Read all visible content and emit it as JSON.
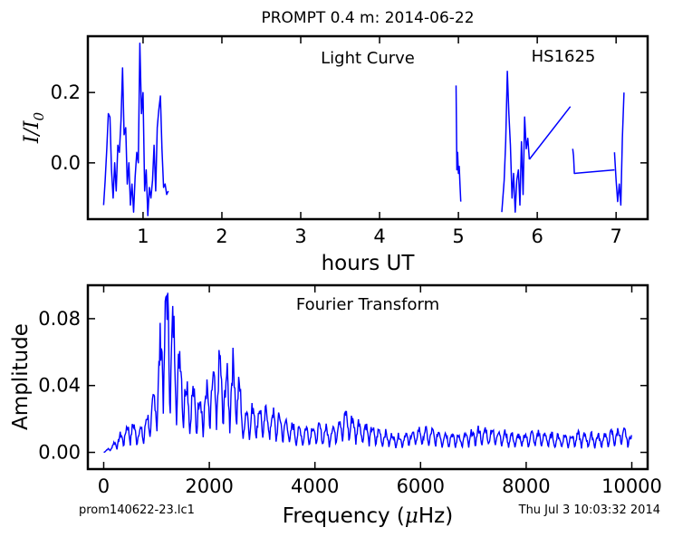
{
  "figure": {
    "title": "PROMPT 0.4 m:  2014-06-22",
    "footer_left": "prom140622-23.lc1",
    "footer_right": "Thu Jul  3 10:03:32 2014",
    "line_color": "#0000ff"
  },
  "chart_data": [
    {
      "type": "line",
      "title": "Light Curve",
      "annotation": "HS1625",
      "xlabel": "hours UT",
      "ylabel": "I/I₀",
      "ylabel_main": "I/I",
      "ylabel_sub": "0",
      "xlim": [
        0.3,
        7.4
      ],
      "ylim": [
        -0.16,
        0.36
      ],
      "xticks": [
        1,
        2,
        3,
        4,
        5,
        6,
        7
      ],
      "xtick_labels": [
        "1",
        "2",
        "3",
        "4",
        "5",
        "6",
        "7"
      ],
      "yticks": [
        0.0,
        0.2
      ],
      "ytick_labels": [
        "0.0",
        "0.2"
      ],
      "segments": [
        {
          "x": [
            0.5,
            0.52,
            0.54,
            0.56,
            0.58,
            0.6,
            0.62,
            0.64,
            0.66,
            0.68,
            0.7,
            0.72,
            0.74,
            0.76,
            0.78,
            0.8,
            0.82,
            0.84,
            0.86,
            0.88,
            0.9,
            0.92,
            0.94,
            0.96,
            0.98,
            1.0,
            1.02,
            1.04,
            1.06,
            1.08,
            1.1,
            1.12,
            1.14,
            1.16,
            1.18,
            1.2,
            1.22,
            1.24,
            1.26,
            1.28,
            1.3,
            1.32
          ],
          "y": [
            -0.12,
            -0.05,
            0.04,
            0.14,
            0.13,
            -0.02,
            -0.1,
            0.0,
            -0.08,
            0.05,
            0.03,
            0.12,
            0.27,
            0.08,
            0.1,
            -0.06,
            0.0,
            -0.12,
            -0.06,
            -0.14,
            -0.04,
            0.03,
            0.0,
            0.34,
            0.14,
            0.2,
            -0.08,
            -0.02,
            -0.15,
            -0.07,
            -0.1,
            -0.05,
            0.05,
            -0.08,
            0.1,
            0.15,
            0.19,
            0.04,
            -0.07,
            -0.06,
            -0.09,
            -0.08
          ]
        },
        {
          "x": [
            4.97,
            4.98,
            4.99,
            5.0,
            5.01,
            5.02,
            5.03
          ],
          "y": [
            0.22,
            -0.02,
            0.03,
            -0.03,
            -0.01,
            -0.06,
            -0.11
          ]
        },
        {
          "x": [
            5.55,
            5.58,
            5.6,
            5.62,
            5.64,
            5.66,
            5.68,
            5.7,
            5.72,
            5.74,
            5.76,
            5.78,
            5.8,
            5.82,
            5.84,
            5.86,
            5.88,
            5.9
          ],
          "y": [
            -0.14,
            -0.05,
            0.06,
            0.26,
            0.14,
            0.05,
            -0.1,
            -0.03,
            -0.14,
            -0.05,
            -0.02,
            -0.12,
            0.06,
            -0.09,
            0.13,
            0.04,
            0.07,
            0.01
          ]
        },
        {
          "x": [
            5.9,
            6.42
          ],
          "y": [
            0.01,
            0.16
          ]
        },
        {
          "x": [
            6.45,
            6.46,
            6.47,
            6.98
          ],
          "y": [
            0.04,
            0.02,
            -0.03,
            -0.02
          ]
        },
        {
          "x": [
            6.98,
            7.0,
            7.02,
            7.04,
            7.06,
            7.08,
            7.1
          ],
          "y": [
            0.03,
            -0.05,
            -0.11,
            -0.06,
            -0.12,
            0.07,
            0.2
          ]
        }
      ]
    },
    {
      "type": "line",
      "title": "Fourier Transform",
      "xlabel_prefix": "Frequency (",
      "xlabel_mu": "μ",
      "xlabel_suffix": "Hz)",
      "ylabel": "Amplitude",
      "xlim": [
        -300,
        10300
      ],
      "ylim": [
        -0.01,
        0.1
      ],
      "xticks": [
        0,
        2000,
        4000,
        6000,
        8000,
        10000
      ],
      "xtick_labels": [
        "0",
        "2000",
        "4000",
        "6000",
        "8000",
        "10000"
      ],
      "yticks": [
        0.0,
        0.04,
        0.08
      ],
      "ytick_labels": [
        "0.00",
        "0.04",
        "0.08"
      ],
      "peaks": [
        {
          "x": 150,
          "y": 0.004
        },
        {
          "x": 350,
          "y": 0.012
        },
        {
          "x": 500,
          "y": 0.018
        },
        {
          "x": 700,
          "y": 0.014
        },
        {
          "x": 850,
          "y": 0.024
        },
        {
          "x": 950,
          "y": 0.033
        },
        {
          "x": 1050,
          "y": 0.058
        },
        {
          "x": 1150,
          "y": 0.1
        },
        {
          "x": 1250,
          "y": 0.088
        },
        {
          "x": 1350,
          "y": 0.072
        },
        {
          "x": 1450,
          "y": 0.06
        },
        {
          "x": 1550,
          "y": 0.044
        },
        {
          "x": 1700,
          "y": 0.036
        },
        {
          "x": 1850,
          "y": 0.034
        },
        {
          "x": 2000,
          "y": 0.04
        },
        {
          "x": 2100,
          "y": 0.046
        },
        {
          "x": 2200,
          "y": 0.056
        },
        {
          "x": 2300,
          "y": 0.044
        },
        {
          "x": 2400,
          "y": 0.052
        },
        {
          "x": 2500,
          "y": 0.054
        },
        {
          "x": 2650,
          "y": 0.024
        },
        {
          "x": 2800,
          "y": 0.028
        },
        {
          "x": 3000,
          "y": 0.026
        },
        {
          "x": 3200,
          "y": 0.024
        },
        {
          "x": 3400,
          "y": 0.02
        },
        {
          "x": 3700,
          "y": 0.014
        },
        {
          "x": 4000,
          "y": 0.016
        },
        {
          "x": 4300,
          "y": 0.014
        },
        {
          "x": 4550,
          "y": 0.024
        },
        {
          "x": 4750,
          "y": 0.02
        },
        {
          "x": 5000,
          "y": 0.016
        },
        {
          "x": 5300,
          "y": 0.012
        },
        {
          "x": 5600,
          "y": 0.01
        },
        {
          "x": 6000,
          "y": 0.014
        },
        {
          "x": 6400,
          "y": 0.012
        },
        {
          "x": 6800,
          "y": 0.01
        },
        {
          "x": 7100,
          "y": 0.014
        },
        {
          "x": 7400,
          "y": 0.014
        },
        {
          "x": 7800,
          "y": 0.01
        },
        {
          "x": 8200,
          "y": 0.012
        },
        {
          "x": 8600,
          "y": 0.01
        },
        {
          "x": 9000,
          "y": 0.011
        },
        {
          "x": 9400,
          "y": 0.01
        },
        {
          "x": 9800,
          "y": 0.014
        },
        {
          "x": 10000,
          "y": 0.01
        }
      ]
    }
  ]
}
